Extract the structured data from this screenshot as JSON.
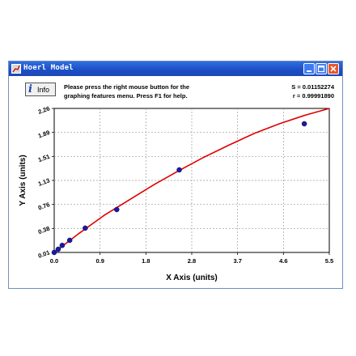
{
  "window": {
    "title": "Hoerl Model",
    "controls": [
      "minimize",
      "maximize",
      "close"
    ]
  },
  "toolbar": {
    "info_label": "Info",
    "message_line1": "Please press the right mouse button for the",
    "message_line2": "graphing features menu.  Press F1 for help.",
    "stat_s": "S = 0.01152274",
    "stat_r": "r = 0.99991890"
  },
  "colors": {
    "titlebar": "#1d4fc7",
    "curve": "#e00000",
    "points": "#1a1aa8",
    "grid": "#9a9a9a"
  },
  "chart_data": {
    "type": "scatter",
    "xlabel": "X Axis (units)",
    "ylabel": "Y Axis (units)",
    "xlim": [
      0.0,
      5.5
    ],
    "ylim": [
      0.01,
      2.26
    ],
    "xticks": [
      "0.0",
      "0.9",
      "1.8",
      "2.8",
      "3.7",
      "4.6",
      "5.5"
    ],
    "yticks": [
      "0.01",
      "0.38",
      "0.76",
      "1.13",
      "1.51",
      "1.89",
      "2.26"
    ],
    "grid": true,
    "series": [
      {
        "kind": "points",
        "x": [
          0.0,
          0.08,
          0.16,
          0.31,
          0.62,
          1.25,
          2.5,
          5.0
        ],
        "y": [
          0.01,
          0.06,
          0.12,
          0.2,
          0.39,
          0.68,
          1.3,
          2.02
        ]
      },
      {
        "kind": "fit-curve",
        "x": [
          0.0,
          0.5,
          1.0,
          1.5,
          2.0,
          2.5,
          3.0,
          3.5,
          4.0,
          4.5,
          5.0,
          5.5
        ],
        "y": [
          0.01,
          0.31,
          0.59,
          0.83,
          1.07,
          1.29,
          1.5,
          1.69,
          1.87,
          2.02,
          2.15,
          2.26
        ]
      }
    ]
  }
}
